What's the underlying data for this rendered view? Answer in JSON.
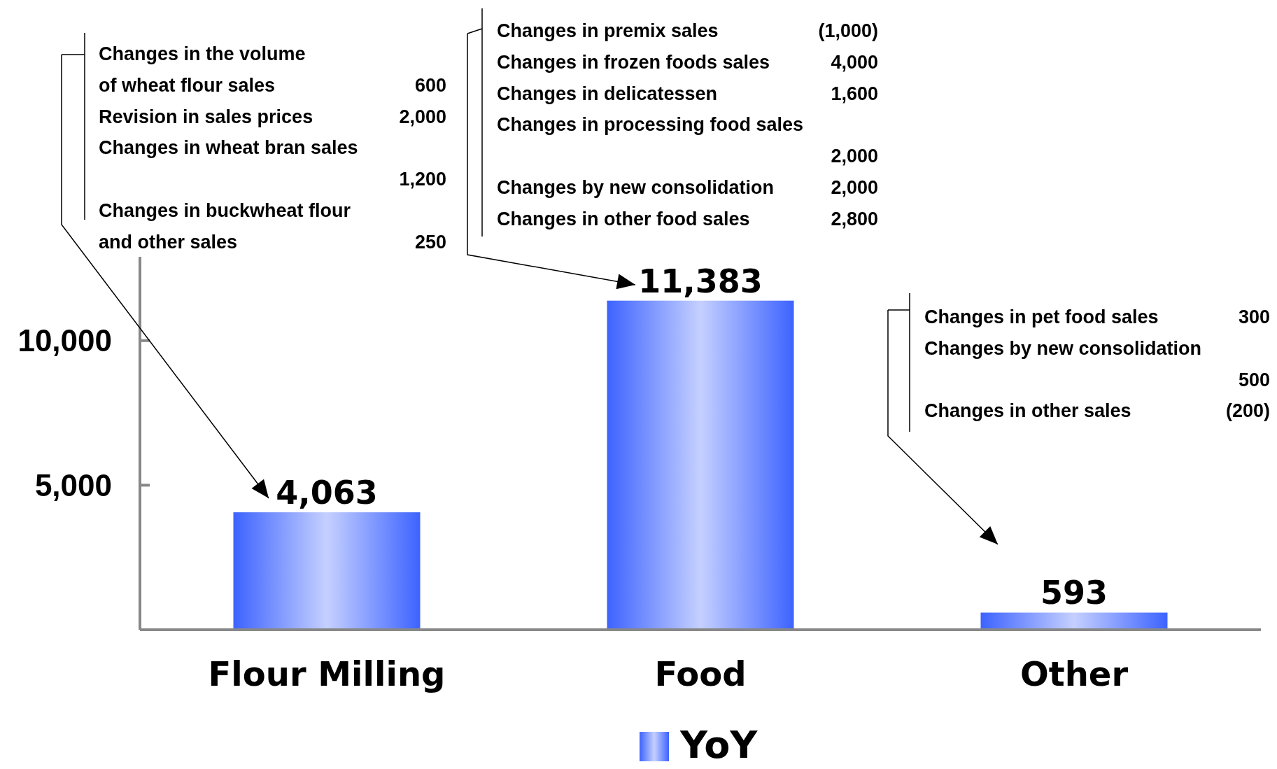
{
  "chart_data": {
    "type": "bar",
    "categories": [
      "Flour Milling",
      "Food",
      "Other"
    ],
    "series": [
      {
        "name": "YoY",
        "color": "#3d63ff",
        "values": [
          4063,
          11383,
          593
        ]
      }
    ],
    "ylim": [
      0,
      12900
    ],
    "yticks": [
      {
        "value": 5000,
        "label": "5,000"
      },
      {
        "value": 10000,
        "label": "10,000"
      }
    ],
    "value_labels": [
      "4,063",
      "11,383",
      "593"
    ],
    "legend": "bottom",
    "grid": false,
    "annotations": [
      "Changes in the volume",
      "of wheat flour sales",
      "600",
      "Revision in sales prices",
      "2,000",
      "Changes in wheat bran sales",
      "1,200",
      "Changes in buckwheat flour",
      "and other sales",
      "250",
      "Changes in premix sales",
      "(1,000)",
      "Changes in frozen foods sales",
      "4,000",
      "Changes in delicatessen",
      "1,600",
      "Changes in processing food sales",
      "2,000",
      "Changes by new consolidation",
      "2,000",
      "Changes in other food sales",
      "2,800",
      "Changes in pet food sales",
      "300",
      "Changes by new consolidation",
      "500",
      "Changes in other  sales",
      "(200)"
    ]
  }
}
